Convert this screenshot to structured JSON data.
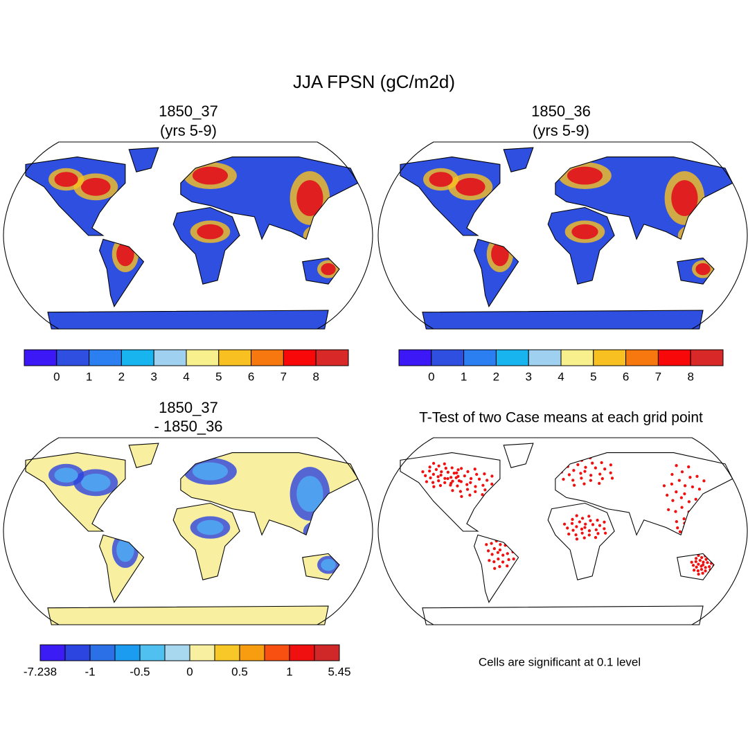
{
  "title": "JJA FPSN (gC/m2d)",
  "panels": [
    {
      "title": [
        "1850_37",
        "(yrs 5-9)"
      ],
      "colorbar": {
        "colors": [
          "#3b18f5",
          "#2f4fe0",
          "#2b7ff0",
          "#18b4f0",
          "#a0d0f0",
          "#f8f08c",
          "#f8c020",
          "#f87810",
          "#f80808",
          "#d82828"
        ],
        "labels": [
          0,
          1,
          2,
          3,
          4,
          5,
          6,
          7,
          8
        ]
      }
    },
    {
      "title": [
        "1850_36",
        "(yrs 5-9)"
      ],
      "colorbar": {
        "colors": [
          "#3b18f5",
          "#2f4fe0",
          "#2b7ff0",
          "#18b4f0",
          "#a0d0f0",
          "#f8f08c",
          "#f8c020",
          "#f87810",
          "#f80808",
          "#d82828"
        ],
        "labels": [
          0,
          1,
          2,
          3,
          4,
          5,
          6,
          7,
          8
        ]
      }
    },
    {
      "title": [
        "1850_37",
        "- 1850_36"
      ],
      "colorbar": {
        "colors": [
          "#3c1cf4",
          "#2c44e0",
          "#2c70e8",
          "#1c9cf0",
          "#50c0f0",
          "#a8d8f0",
          "#f8f0a0",
          "#f8c828",
          "#f89c10",
          "#f85010",
          "#f01010",
          "#d02828"
        ],
        "labels": [
          -7.238,
          -1,
          -0.5,
          0,
          0.5,
          1,
          5.45
        ]
      }
    },
    {
      "title": [
        "T-Test of two Case means at each grid point"
      ],
      "note": "Cells are significant at 0.1 level"
    }
  ]
}
